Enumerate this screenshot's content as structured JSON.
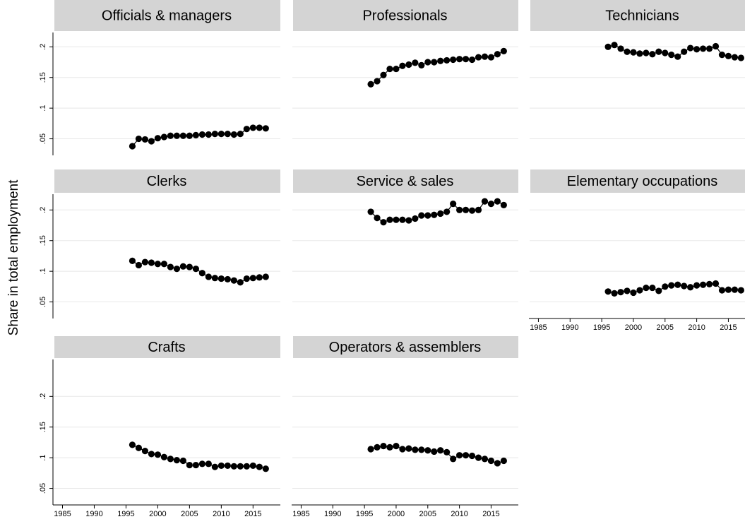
{
  "chart_data": [
    {
      "type": "line",
      "title": "Officials & managers",
      "ylabel": "Share in total employment",
      "x": [
        1996,
        1997,
        1998,
        1999,
        2000,
        2001,
        2002,
        2003,
        2004,
        2005,
        2006,
        2007,
        2008,
        2009,
        2010,
        2011,
        2012,
        2013,
        2014,
        2015,
        2016,
        2017
      ],
      "values": [
        0.038,
        0.05,
        0.049,
        0.046,
        0.051,
        0.053,
        0.055,
        0.055,
        0.055,
        0.055,
        0.056,
        0.057,
        0.057,
        0.058,
        0.058,
        0.058,
        0.057,
        0.058,
        0.066,
        0.068,
        0.068,
        0.067
      ],
      "color": "#000000",
      "xlim": [
        1983.5,
        2019.3
      ],
      "ylim": [
        0.023,
        0.228
      ],
      "yticks": [
        {
          "value": 0.05,
          "label": ".05"
        },
        {
          "value": 0.1,
          "label": ".1"
        },
        {
          "value": 0.15,
          "label": ".15"
        },
        {
          "value": 0.2,
          "label": ".2"
        }
      ],
      "grid": true
    },
    {
      "type": "line",
      "title": "Professionals",
      "x": [
        1996,
        1997,
        1998,
        1999,
        2000,
        2001,
        2002,
        2003,
        2004,
        2005,
        2006,
        2007,
        2008,
        2009,
        2010,
        2011,
        2012,
        2013,
        2014,
        2015,
        2016,
        2017
      ],
      "values": [
        0.139,
        0.144,
        0.154,
        0.164,
        0.164,
        0.169,
        0.171,
        0.174,
        0.17,
        0.175,
        0.175,
        0.177,
        0.178,
        0.179,
        0.18,
        0.18,
        0.179,
        0.183,
        0.184,
        0.183,
        0.188,
        0.193
      ],
      "color": "#000000",
      "xlim": [
        1983.5,
        2019.3
      ],
      "ylim": [
        0.023,
        0.228
      ],
      "grid": true
    },
    {
      "type": "line",
      "title": "Technicians",
      "x": [
        1996,
        1997,
        1998,
        1999,
        2000,
        2001,
        2002,
        2003,
        2004,
        2005,
        2006,
        2007,
        2008,
        2009,
        2010,
        2011,
        2012,
        2013,
        2014,
        2015,
        2016,
        2017
      ],
      "values": [
        0.2,
        0.203,
        0.197,
        0.192,
        0.191,
        0.189,
        0.19,
        0.188,
        0.192,
        0.19,
        0.187,
        0.184,
        0.192,
        0.198,
        0.196,
        0.197,
        0.197,
        0.201,
        0.187,
        0.185,
        0.183,
        0.182
      ],
      "color": "#000000",
      "xlim": [
        1983.5,
        2019.3
      ],
      "ylim": [
        0.023,
        0.228
      ],
      "grid": true
    },
    {
      "type": "line",
      "title": "Clerks",
      "x": [
        1996,
        1997,
        1998,
        1999,
        2000,
        2001,
        2002,
        2003,
        2004,
        2005,
        2006,
        2007,
        2008,
        2009,
        2010,
        2011,
        2012,
        2013,
        2014,
        2015,
        2016,
        2017
      ],
      "values": [
        0.117,
        0.11,
        0.115,
        0.114,
        0.112,
        0.112,
        0.107,
        0.104,
        0.108,
        0.107,
        0.104,
        0.097,
        0.091,
        0.089,
        0.088,
        0.087,
        0.085,
        0.082,
        0.088,
        0.089,
        0.09,
        0.091
      ],
      "color": "#000000",
      "xlim": [
        1983.5,
        2019.3
      ],
      "ylim": [
        0.023,
        0.228
      ],
      "yticks": [
        {
          "value": 0.05,
          "label": ".05"
        },
        {
          "value": 0.1,
          "label": ".1"
        },
        {
          "value": 0.15,
          "label": ".15"
        },
        {
          "value": 0.2,
          "label": ".2"
        }
      ],
      "grid": true
    },
    {
      "type": "line",
      "title": "Service & sales",
      "x": [
        1996,
        1997,
        1998,
        1999,
        2000,
        2001,
        2002,
        2003,
        2004,
        2005,
        2006,
        2007,
        2008,
        2009,
        2010,
        2011,
        2012,
        2013,
        2014,
        2015,
        2016,
        2017
      ],
      "values": [
        0.197,
        0.187,
        0.18,
        0.184,
        0.184,
        0.184,
        0.183,
        0.186,
        0.191,
        0.191,
        0.192,
        0.194,
        0.197,
        0.21,
        0.2,
        0.2,
        0.199,
        0.2,
        0.214,
        0.21,
        0.214,
        0.208
      ],
      "color": "#000000",
      "xlim": [
        1983.5,
        2019.3
      ],
      "ylim": [
        0.023,
        0.228
      ],
      "grid": true
    },
    {
      "type": "line",
      "title": "Elementary occupations",
      "x": [
        1996,
        1997,
        1998,
        1999,
        2000,
        2001,
        2002,
        2003,
        2004,
        2005,
        2006,
        2007,
        2008,
        2009,
        2010,
        2011,
        2012,
        2013,
        2014,
        2015,
        2016,
        2017
      ],
      "values": [
        0.067,
        0.064,
        0.066,
        0.068,
        0.065,
        0.069,
        0.073,
        0.073,
        0.068,
        0.075,
        0.077,
        0.078,
        0.076,
        0.074,
        0.077,
        0.078,
        0.079,
        0.08,
        0.069,
        0.07,
        0.07,
        0.069
      ],
      "color": "#000000",
      "xlim": [
        1983.5,
        2019.3
      ],
      "ylim": [
        0.023,
        0.228
      ],
      "xticks": [
        1985,
        1990,
        1995,
        2000,
        2005,
        2010,
        2015
      ],
      "grid": true
    },
    {
      "type": "line",
      "title": "Crafts",
      "x": [
        1996,
        1997,
        1998,
        1999,
        2000,
        2001,
        2002,
        2003,
        2004,
        2005,
        2006,
        2007,
        2008,
        2009,
        2010,
        2011,
        2012,
        2013,
        2014,
        2015,
        2016,
        2017
      ],
      "values": [
        0.121,
        0.116,
        0.111,
        0.106,
        0.105,
        0.101,
        0.098,
        0.096,
        0.095,
        0.088,
        0.088,
        0.09,
        0.09,
        0.085,
        0.087,
        0.087,
        0.086,
        0.086,
        0.086,
        0.087,
        0.085,
        0.082
      ],
      "color": "#000000",
      "xlim": [
        1983.5,
        2019.3
      ],
      "ylim": [
        0.023,
        0.228
      ],
      "yticks": [
        {
          "value": 0.05,
          "label": ".05"
        },
        {
          "value": 0.1,
          "label": ".1"
        },
        {
          "value": 0.15,
          "label": ".15"
        },
        {
          "value": 0.2,
          "label": ".2"
        }
      ],
      "xticks": [
        1985,
        1990,
        1995,
        2000,
        2005,
        2010,
        2015
      ],
      "grid": true
    },
    {
      "type": "line",
      "title": "Operators & assemblers",
      "x": [
        1996,
        1997,
        1998,
        1999,
        2000,
        2001,
        2002,
        2003,
        2004,
        2005,
        2006,
        2007,
        2008,
        2009,
        2010,
        2011,
        2012,
        2013,
        2014,
        2015,
        2016,
        2017
      ],
      "values": [
        0.114,
        0.117,
        0.119,
        0.117,
        0.119,
        0.114,
        0.115,
        0.113,
        0.113,
        0.112,
        0.11,
        0.112,
        0.109,
        0.098,
        0.104,
        0.104,
        0.103,
        0.1,
        0.098,
        0.095,
        0.091,
        0.095
      ],
      "color": "#000000",
      "xlim": [
        1983.5,
        2019.3
      ],
      "ylim": [
        0.023,
        0.228
      ],
      "xticks": [
        1985,
        1990,
        1995,
        2000,
        2005,
        2010,
        2015
      ],
      "grid": true
    }
  ]
}
